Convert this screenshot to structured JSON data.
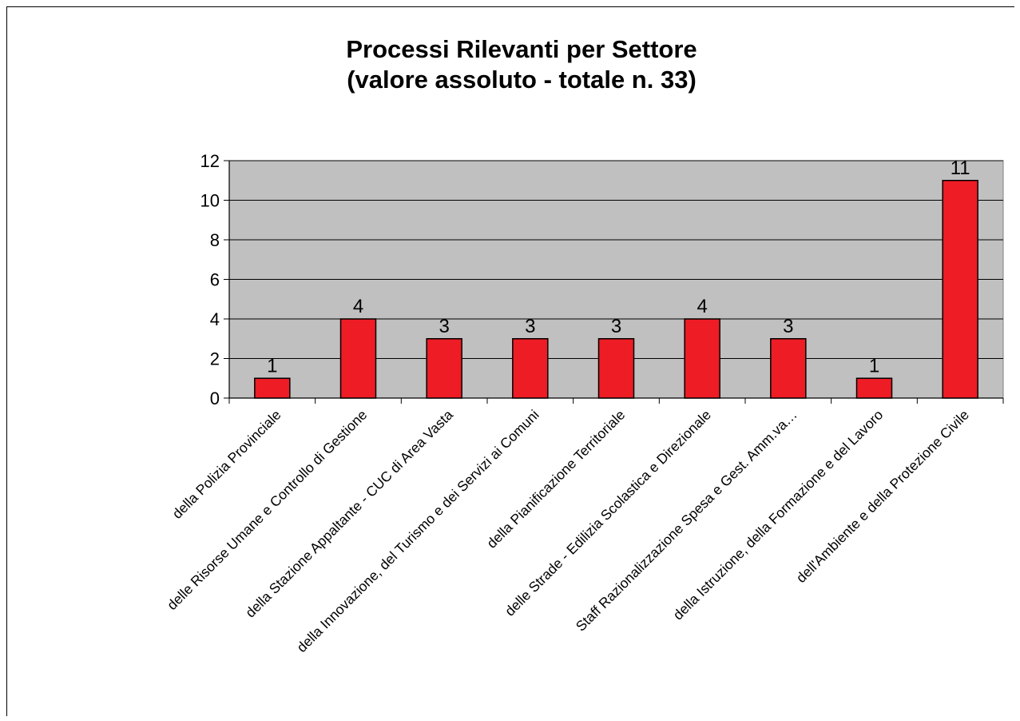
{
  "chart_data": {
    "type": "bar",
    "title": "Processi Rilevanti per Settore",
    "subtitle": "(valore assoluto - totale n. 33)",
    "categories": [
      "della Polizia Provinciale",
      "delle Risorse Umane e Controllo di Gestione",
      "della Stazione Appaltante - CUC di Area Vasta",
      "della Innovazione, del Turismo e dei Servizi ai Comuni",
      "della Pianificazione Territoriale",
      "delle Strade - Edilizia Scolastica e Direzionale",
      "Staff Razionalizzazione Spesa e Gest. Amm.va…",
      "della Istruzione, della Formazione e del Lavoro",
      "dell'Ambiente e della Protezione Civile"
    ],
    "values": [
      1,
      4,
      3,
      3,
      3,
      4,
      3,
      1,
      11
    ],
    "data_labels": [
      "1",
      "4",
      "3",
      "3",
      "3",
      "4",
      "3",
      "1",
      "11"
    ],
    "ylim": [
      0,
      12
    ],
    "yticks": [
      "0",
      "2",
      "4",
      "6",
      "8",
      "10",
      "12"
    ],
    "xlabel": "",
    "ylabel": "",
    "grid": true,
    "legend": "none",
    "colors": {
      "bar": "#ee1c25",
      "bar_border": "#000000",
      "plot_background": "#c0c0c0",
      "gridline": "#000000"
    }
  }
}
